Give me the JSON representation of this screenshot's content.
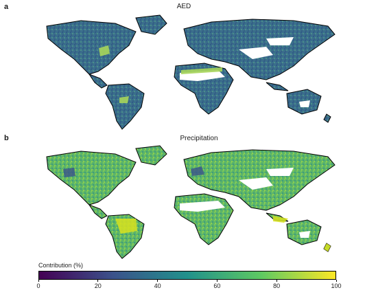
{
  "panels": [
    {
      "letter": "a",
      "title": "AED"
    },
    {
      "letter": "b",
      "title": "Precipitation"
    }
  ],
  "colorbar": {
    "label": "Contribution (%)",
    "min": 0,
    "max": 100,
    "ticks": [
      "0",
      "20",
      "40",
      "60",
      "80",
      "100"
    ],
    "colormap": [
      "#440154",
      "#3b528b",
      "#21918c",
      "#5ec962",
      "#fde725"
    ]
  },
  "colors": {
    "panel_a_dominant": "#3a6d8c",
    "panel_b_dominant": "#57b36a",
    "no_data": "#ffffff",
    "coastline": "#000000"
  }
}
